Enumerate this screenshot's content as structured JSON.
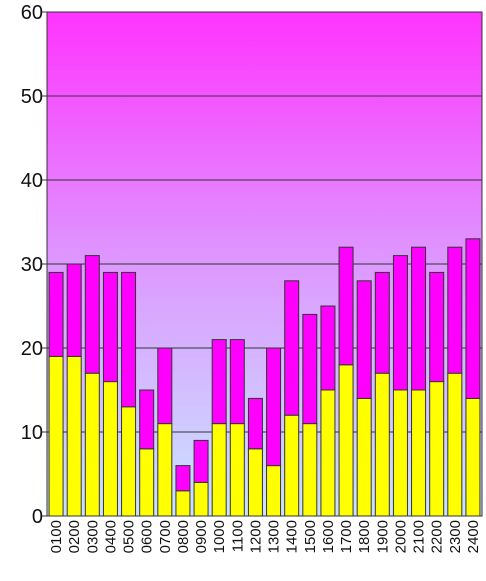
{
  "chart_data": {
    "type": "stacked_bar",
    "categories": [
      "0100",
      "0200",
      "0300",
      "0400",
      "0500",
      "0600",
      "0700",
      "0800",
      "0900",
      "1000",
      "1100",
      "1200",
      "1300",
      "1400",
      "1500",
      "1600",
      "1700",
      "1800",
      "1900",
      "2000",
      "2100",
      "2200",
      "2300",
      "2400"
    ],
    "series": [
      {
        "color": "#ffff00",
        "values": [
          19,
          19,
          17,
          16,
          13,
          8,
          11,
          3,
          4,
          11,
          11,
          8,
          6,
          12,
          11,
          15,
          18,
          14,
          17,
          15,
          15,
          16,
          17,
          14
        ]
      },
      {
        "color": "#ff00ff",
        "values": [
          10,
          11,
          14,
          13,
          16,
          7,
          9,
          3,
          5,
          10,
          10,
          6,
          14,
          16,
          13,
          10,
          14,
          14,
          12,
          16,
          17,
          13,
          15,
          19
        ]
      }
    ],
    "ylim": [
      0,
      60
    ],
    "yticks": [
      0,
      10,
      20,
      30,
      40,
      50,
      60
    ],
    "grid": true
  }
}
